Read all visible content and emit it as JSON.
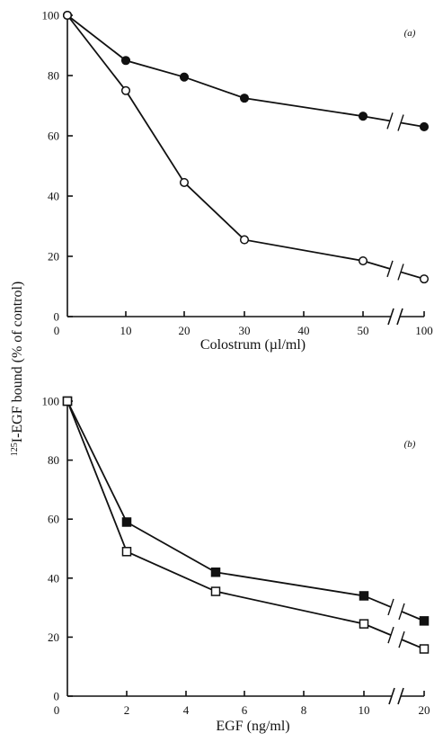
{
  "ylabel_shared": "125I-EGF bound (% of control)",
  "ylabel_sup": "125",
  "ylabel_rest": "I-EGF bound (% of control)",
  "chart_data": [
    {
      "type": "line",
      "panel_label": "(a)",
      "xlabel": "Colostrum (µl/ml)",
      "ylabel": "125I-EGF bound (% of control)",
      "ylim": [
        0,
        100
      ],
      "y_ticks": [
        "0",
        "20",
        "40",
        "60",
        "80",
        "100"
      ],
      "x_ticks": [
        "0",
        "10",
        "20",
        "30",
        "40",
        "50",
        "100"
      ],
      "axis_break_between": [
        50,
        100
      ],
      "grid": false,
      "series": [
        {
          "marker": "filled-circle",
          "x": [
            0,
            10,
            20,
            30,
            50,
            100
          ],
          "y": [
            100,
            85,
            79.5,
            72.5,
            66.5,
            63
          ]
        },
        {
          "marker": "open-circle",
          "x": [
            0,
            10,
            20,
            30,
            50,
            100
          ],
          "y": [
            100,
            75,
            44.5,
            25.5,
            18.5,
            12.5
          ]
        }
      ]
    },
    {
      "type": "line",
      "panel_label": "(b)",
      "xlabel": "EGF (ng/ml)",
      "ylabel": "125I-EGF bound (% of control)",
      "ylim": [
        0,
        100
      ],
      "y_ticks": [
        "0",
        "20",
        "40",
        "60",
        "80",
        "100"
      ],
      "x_ticks": [
        "0",
        "2",
        "4",
        "6",
        "8",
        "10",
        "20"
      ],
      "axis_break_between": [
        10,
        20
      ],
      "grid": false,
      "series": [
        {
          "marker": "filled-square",
          "x": [
            0,
            2,
            5,
            10,
            20
          ],
          "y": [
            100,
            59,
            42,
            34,
            25.5
          ]
        },
        {
          "marker": "open-square",
          "x": [
            0,
            2,
            5,
            10,
            20
          ],
          "y": [
            100,
            49,
            35.5,
            24.5,
            16
          ]
        }
      ]
    }
  ]
}
